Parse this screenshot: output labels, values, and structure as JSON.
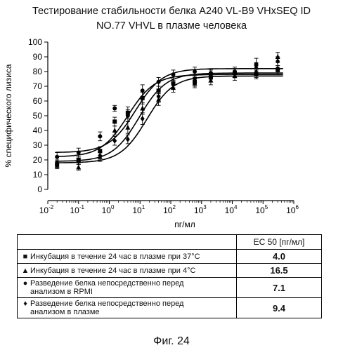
{
  "chart_data": {
    "type": "scatter",
    "title_line1": "Тестирование стабильности белка A240 VL-B9 VHxSEQ ID",
    "title_line2": "NO.77 VHVL в плазме человека",
    "xlabel": "пг/мл",
    "ylabel": "% специфического лизиса",
    "xscale": "log",
    "xlim_log": [
      -2,
      6
    ],
    "ylim": [
      0,
      100
    ],
    "yticks": [
      "0",
      "10",
      "20",
      "30",
      "40",
      "50",
      "60",
      "70",
      "80",
      "90",
      "100"
    ],
    "xticks": [
      {
        "base": "10",
        "exp": "-2"
      },
      {
        "base": "10",
        "exp": "-1"
      },
      {
        "base": "10",
        "exp": "0"
      },
      {
        "base": "10",
        "exp": "1"
      },
      {
        "base": "10",
        "exp": "2"
      },
      {
        "base": "10",
        "exp": "3"
      },
      {
        "base": "10",
        "exp": "4"
      },
      {
        "base": "10",
        "exp": "5"
      },
      {
        "base": "10",
        "exp": "6"
      }
    ],
    "series": [
      {
        "name": "Инкубация в течение 24 час в плазме при 37°C",
        "marker": "square",
        "ec50": 4.0,
        "curve": {
          "bottom": 22,
          "top": 78,
          "log_ec50": 0.602,
          "hill": 1.0
        },
        "x": [
          0.02,
          0.1,
          0.5,
          1.5,
          4,
          12,
          40,
          120,
          600,
          2000,
          12000,
          60000,
          300000
        ],
        "y": [
          17,
          20,
          26,
          46,
          52,
          62,
          67,
          72,
          73,
          76,
          79,
          78,
          81
        ],
        "yerr": [
          2,
          2,
          3,
          3,
          4,
          4,
          3,
          3,
          3,
          3,
          3,
          3,
          3
        ]
      },
      {
        "name": "Инкубация в течение 24 час в плазме при 4°C",
        "marker": "triangle",
        "ec50": 16.5,
        "curve": {
          "bottom": 18,
          "top": 77,
          "log_ec50": 1.217,
          "hill": 1.0
        },
        "x": [
          0.02,
          0.1,
          0.5,
          1.5,
          4,
          12,
          40,
          120,
          600,
          2000,
          12000,
          60000,
          300000
        ],
        "y": [
          16,
          15,
          22,
          40,
          42,
          55,
          61,
          69,
          72,
          74,
          77,
          80,
          90
        ],
        "yerr": [
          2,
          2,
          3,
          3,
          4,
          4,
          4,
          3,
          3,
          3,
          3,
          4,
          3
        ]
      },
      {
        "name": "Разведение белка непосредственно перед анализом в RPMI",
        "marker": "circle",
        "ec50": 7.1,
        "curve": {
          "bottom": 25,
          "top": 82,
          "log_ec50": 0.851,
          "hill": 1.0
        },
        "x": [
          0.02,
          0.1,
          0.5,
          1.5,
          4,
          12,
          40,
          120,
          600,
          2000,
          12000,
          60000,
          300000
        ],
        "y": [
          22,
          25,
          36,
          55,
          50,
          67,
          73,
          78,
          80,
          79,
          80,
          85,
          82
        ],
        "yerr": [
          3,
          3,
          3,
          2,
          4,
          4,
          3,
          3,
          3,
          3,
          3,
          4,
          4
        ]
      },
      {
        "name": "Разведение белка непосредственно перед анализом в плазме",
        "marker": "diamond",
        "ec50": 9.4,
        "curve": {
          "bottom": 19,
          "top": 79,
          "log_ec50": 0.973,
          "hill": 1.0
        },
        "x": [
          0.02,
          0.1,
          0.5,
          1.5,
          4,
          12,
          40,
          120,
          600,
          2000,
          12000,
          60000,
          300000
        ],
        "y": [
          18,
          19,
          23,
          33,
          34,
          48,
          63,
          71,
          75,
          78,
          79,
          83,
          87
        ],
        "yerr": [
          2,
          2,
          3,
          3,
          3,
          4,
          4,
          3,
          3,
          3,
          3,
          3,
          3
        ]
      }
    ]
  },
  "table": {
    "header": "EC 50 [пг/мл]",
    "rows": [
      {
        "label": "Инкубация в течение 24 час в плазме при 37°C",
        "marker": "■",
        "value": "4.0"
      },
      {
        "label": "Инкубация в течение 24 час в плазме при 4°C",
        "marker": "▲",
        "value": "16.5"
      },
      {
        "label_line1": "Разведение белка непосредственно перед",
        "label_line2": "анализом в RPMI",
        "marker": "●",
        "value": "7.1"
      },
      {
        "label_line1": "Разведение белка непосредственно перед",
        "label_line2": "анализом в плазме",
        "marker": "♦",
        "value": "9.4"
      }
    ]
  },
  "caption": "Фиг. 24"
}
